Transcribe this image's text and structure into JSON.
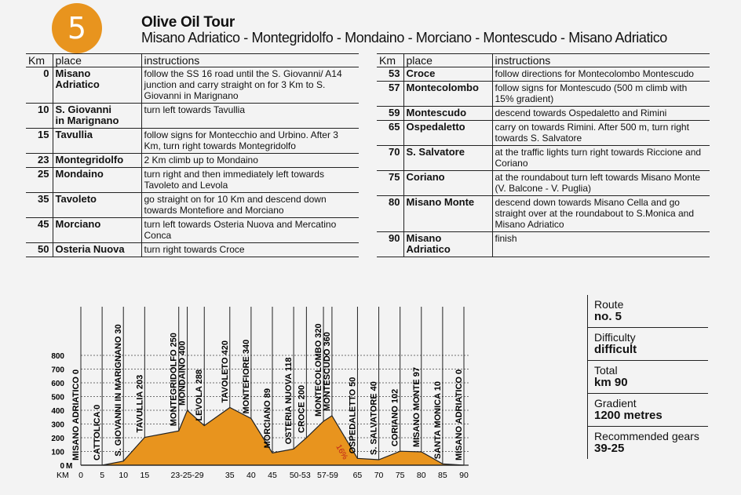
{
  "route_number": "5",
  "title": "Olive Oil Tour",
  "subtitle": "Misano Adriatico - Montegridolfo - Mondaino - Morciano - Montescudo - Misano Adriatico",
  "table_headers": {
    "km": "Km",
    "place": "place",
    "instructions": "instructions"
  },
  "left_rows": [
    {
      "km": "0",
      "place": [
        "Misano",
        "Adriatico"
      ],
      "instructions": "follow the SS 16 road until the S. Giovanni/ A14 junction and carry straight on for 3 Km to S. Giovanni in Marignano"
    },
    {
      "km": "10",
      "place": [
        "S. Giovanni",
        "in Marignano"
      ],
      "instructions": "turn left towards Tavullia"
    },
    {
      "km": "15",
      "place": [
        "Tavullia"
      ],
      "instructions": "follow signs for Montecchio and Urbino. After 3 Km, turn right towards Montegridolfo"
    },
    {
      "km": "23",
      "place": [
        "Montegridolfo"
      ],
      "instructions": "2 Km climb up to Mondaino"
    },
    {
      "km": "25",
      "place": [
        "Mondaino"
      ],
      "instructions": "turn right and then immediately left towards Tavoleto and Levola"
    },
    {
      "km": "35",
      "place": [
        "Tavoleto"
      ],
      "instructions": "go straight on for 10 Km and descend down towards Montefiore and Morciano"
    },
    {
      "km": "45",
      "place": [
        "Morciano"
      ],
      "instructions": "turn left towards Osteria Nuova and Mercatino Conca"
    },
    {
      "km": "50",
      "place": [
        "Osteria Nuova"
      ],
      "instructions": "turn right towards Croce"
    }
  ],
  "right_rows": [
    {
      "km": "53",
      "place": [
        "Croce"
      ],
      "instructions": "follow directions for Montecolombo Montescudo"
    },
    {
      "km": "57",
      "place": [
        "Montecolombo"
      ],
      "instructions": "follow signs for Montescudo (500 m climb with 15% gradient)"
    },
    {
      "km": "59",
      "place": [
        "Montescudo"
      ],
      "instructions": "descend towards Ospedaletto and Rimini"
    },
    {
      "km": "65",
      "place": [
        "Ospedaletto"
      ],
      "instructions": "carry on towards Rimini. After 500 m, turn right towards S. Salvatore"
    },
    {
      "km": "70",
      "place": [
        "S. Salvatore"
      ],
      "instructions": "at the traffic lights turn right towards Riccione and Coriano"
    },
    {
      "km": "75",
      "place": [
        "Coriano"
      ],
      "instructions": "at the roundabout turn left towards Misano Monte (V. Balcone - V. Puglia)"
    },
    {
      "km": "80",
      "place": [
        "Misano Monte"
      ],
      "instructions": "descend down towards Misano Cella and go straight over at the roundabout to S.Monica and Misano Adriatico"
    },
    {
      "km": "90",
      "place": [
        "Misano",
        "Adriatico"
      ],
      "instructions": "finish"
    }
  ],
  "info": [
    {
      "label": "Route",
      "value": "no. 5"
    },
    {
      "label": "Difficulty",
      "value": "difficult"
    },
    {
      "label": "Total",
      "value": "km 90"
    },
    {
      "label": "Gradient",
      "value": "1200 metres"
    },
    {
      "label": "Recommended gears",
      "value": "39-25"
    }
  ],
  "chart_data": {
    "type": "area",
    "y_axis_label": "M",
    "y_ticks": [
      "800",
      "700",
      "600",
      "500",
      "400",
      "300",
      "200",
      "100",
      "0"
    ],
    "ylim": [
      0,
      800
    ],
    "x_axis_label": "KM",
    "x_ticks": [
      "0",
      "5",
      "10",
      "15",
      "23-25-29",
      "35",
      "40",
      "45",
      "50-53",
      "57-59",
      "65",
      "70",
      "75",
      "80",
      "85",
      "90"
    ],
    "x_tick_positions_km": [
      0,
      5,
      10,
      15,
      25,
      35,
      40,
      45,
      51.5,
      58,
      65,
      70,
      75,
      80,
      85,
      90
    ],
    "grid": "horizontal dotted",
    "fill_color": "#e8941e",
    "gradient_note": "16%",
    "points": [
      {
        "km": 0,
        "alt": 0,
        "name": "MISANO ADRIATICO 0"
      },
      {
        "km": 5,
        "alt": 0,
        "name": "CATTOLICA 0"
      },
      {
        "km": 10,
        "alt": 30,
        "name": "S. GIOVANNI IN MARIGNANO 30"
      },
      {
        "km": 15,
        "alt": 203,
        "name": "TAVULLIA 203"
      },
      {
        "km": 23,
        "alt": 250,
        "name": "MONTEGRIDOLFO 250"
      },
      {
        "km": 25,
        "alt": 400,
        "name": "MONDAINO 400"
      },
      {
        "km": 29,
        "alt": 288,
        "name": "LEVOLA 288"
      },
      {
        "km": 35,
        "alt": 420,
        "name": "TAVOLETO 420"
      },
      {
        "km": 40,
        "alt": 340,
        "name": "MONTEFIORE 340"
      },
      {
        "km": 45,
        "alt": 89,
        "name": "MORCIANO 89"
      },
      {
        "km": 50,
        "alt": 118,
        "name": "OSTERIA NUOVA 118"
      },
      {
        "km": 53,
        "alt": 200,
        "name": "CROCE 200"
      },
      {
        "km": 57,
        "alt": 320,
        "name": "MONTECOLOMBO 320"
      },
      {
        "km": 59,
        "alt": 360,
        "name": "MONTESCUDO 360"
      },
      {
        "km": 65,
        "alt": 50,
        "name": "OSPEDALETTO 50"
      },
      {
        "km": 70,
        "alt": 40,
        "name": "S. SALVATORE 40"
      },
      {
        "km": 75,
        "alt": 102,
        "name": "CORIANO 102"
      },
      {
        "km": 80,
        "alt": 97,
        "name": "MISANO MONTE 97"
      },
      {
        "km": 85,
        "alt": 10,
        "name": "SANTA MONICA 10"
      },
      {
        "km": 90,
        "alt": 0,
        "name": "MISANO ADRIATICO 0"
      }
    ]
  }
}
